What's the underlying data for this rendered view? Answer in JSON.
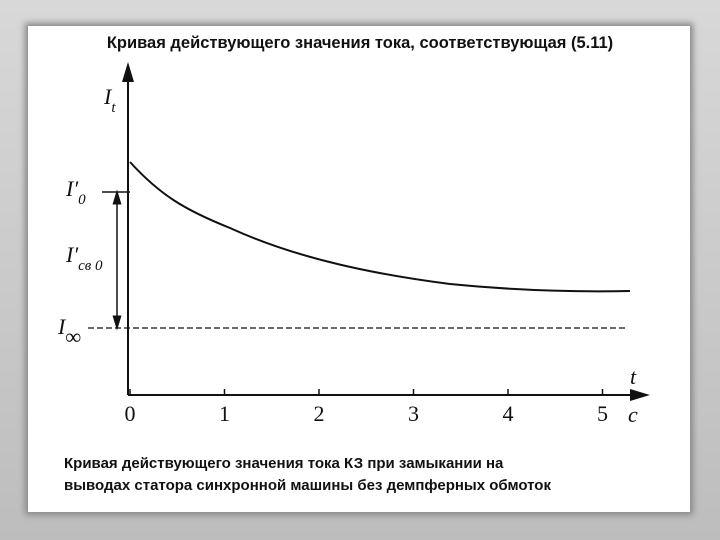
{
  "header": {
    "title": "Кривая действующего значения тока, соответствующая (5.11)"
  },
  "labels": {
    "y_axis": {
      "main": "I",
      "sub": "t"
    },
    "i0": {
      "main": "I′",
      "sub": "0"
    },
    "isv0": {
      "main": "I′",
      "sub": "св 0"
    },
    "iinf": {
      "main": "I",
      "sub": "∞"
    },
    "x_axis": "t",
    "x_unit": "c"
  },
  "xticks": [
    0,
    1,
    2,
    3,
    4,
    5
  ],
  "caption": [
    "Кривая действующего значения тока КЗ при замыкании на",
    "выводах статора синхронной машины без демпферных обмоток"
  ]
}
